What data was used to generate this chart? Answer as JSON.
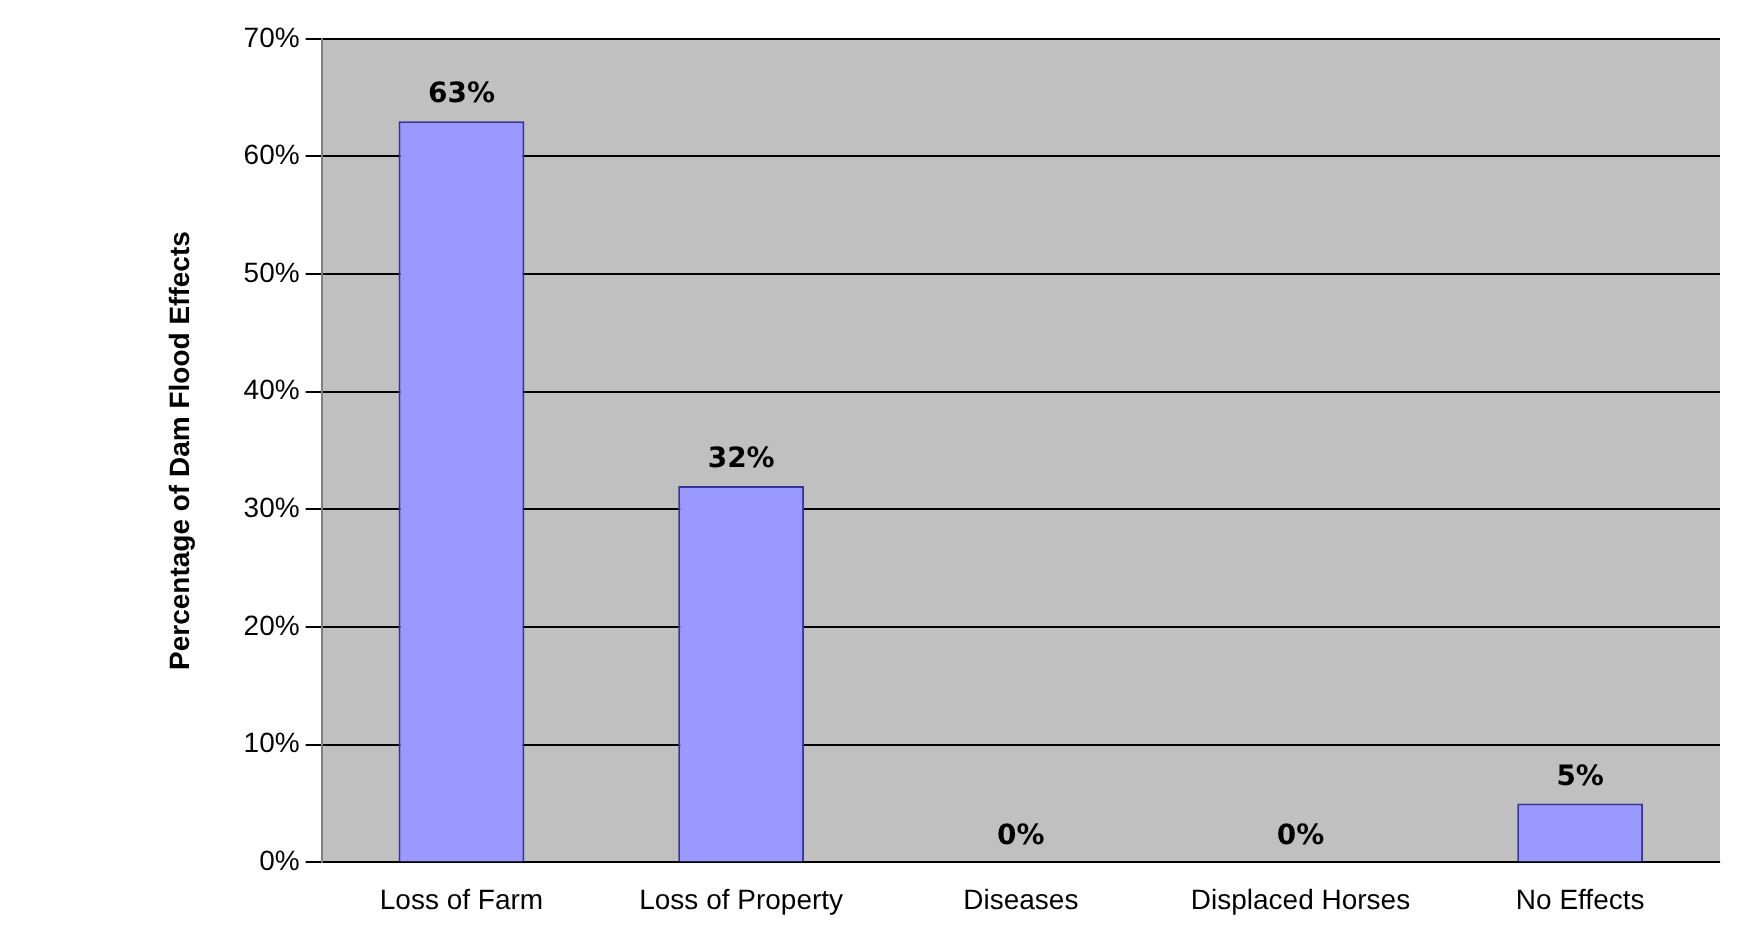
{
  "chart_data": {
    "type": "bar",
    "ylabel": "Percentage of Dam Flood Effects",
    "categories": [
      "Loss of Farm",
      "Loss of Property",
      "Diseases",
      "Displaced Horses",
      "No Effects"
    ],
    "values": [
      63,
      32,
      0,
      0,
      5
    ],
    "value_labels": [
      "63%",
      "32%",
      "0%",
      "0%",
      "5%"
    ],
    "color": "#9999ff",
    "ylim": [
      0,
      70
    ],
    "yticks": [
      {
        "value": 0,
        "label": "0%"
      },
      {
        "value": 10,
        "label": "10%"
      },
      {
        "value": 20,
        "label": "20%"
      },
      {
        "value": 30,
        "label": "30%"
      },
      {
        "value": 40,
        "label": "40%"
      },
      {
        "value": 50,
        "label": "50%"
      },
      {
        "value": 60,
        "label": "60%"
      },
      {
        "value": 70,
        "label": "70%"
      }
    ],
    "grid": "y",
    "legend": false
  }
}
